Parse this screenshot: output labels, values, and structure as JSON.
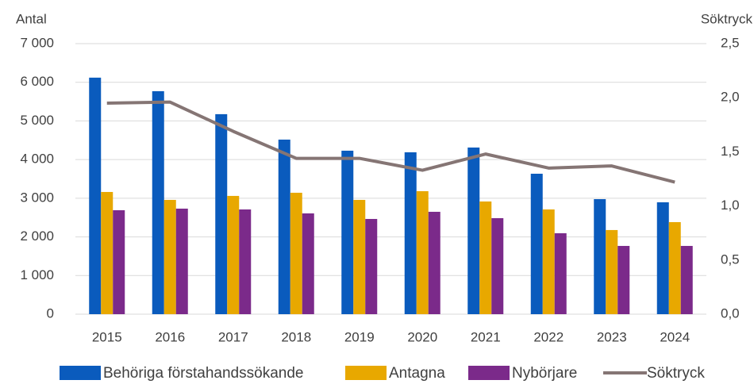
{
  "chart_data": {
    "type": "bar",
    "y_label": "Antal",
    "y2_label": "Söktryck",
    "categories": [
      "2015",
      "2016",
      "2017",
      "2018",
      "2019",
      "2020",
      "2021",
      "2022",
      "2023",
      "2024"
    ],
    "series": [
      {
        "name": "Behöriga förstahandssökande",
        "color": "#0a5bbd",
        "values": [
          6120,
          5770,
          5175,
          4517,
          4230,
          4189,
          4312,
          3634,
          2977,
          2895
        ]
      },
      {
        "name": "Antagna",
        "color": "#e8a800",
        "values": [
          3162,
          2957,
          3060,
          3142,
          2957,
          3183,
          2916,
          2710,
          2177,
          2382
        ]
      },
      {
        "name": "Nybörjare",
        "color": "#7b2a8a",
        "values": [
          2690,
          2731,
          2710,
          2608,
          2464,
          2649,
          2485,
          2094,
          1766,
          1766
        ]
      },
      {
        "name": "Söktryck",
        "color": "#857574",
        "type": "line",
        "axis": "y2",
        "values": [
          1.95,
          1.96,
          1.69,
          1.44,
          1.44,
          1.33,
          1.48,
          1.35,
          1.37,
          1.22
        ]
      }
    ],
    "ylim": [
      0,
      7000
    ],
    "yticks": [
      0,
      {
        "value": 1000,
        "label": "1 000"
      },
      {
        "value": 2000,
        "label": "2 000"
      },
      {
        "value": 3000,
        "label": "3 000"
      },
      {
        "value": 4000,
        "label": "4 000"
      },
      {
        "value": 5000,
        "label": "5 000"
      },
      {
        "value": 6000,
        "label": "6 000"
      },
      {
        "value": 7000,
        "label": "7 000"
      }
    ],
    "y2lim": [
      0,
      2.5
    ],
    "y2ticks": [
      {
        "value": 0,
        "label": "0,0"
      },
      {
        "value": 0.5,
        "label": "0,5"
      },
      {
        "value": 1,
        "label": "1,0"
      },
      {
        "value": 1.5,
        "label": "1,5"
      },
      {
        "value": 2,
        "label": "2,0"
      },
      {
        "value": 2.5,
        "label": "2,5"
      }
    ],
    "grid": true,
    "legend": "bottom"
  }
}
